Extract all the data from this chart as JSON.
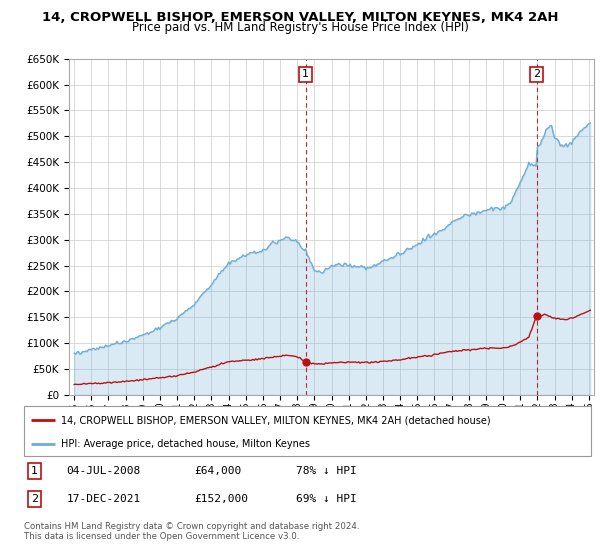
{
  "title": "14, CROPWELL BISHOP, EMERSON VALLEY, MILTON KEYNES, MK4 2AH",
  "subtitle": "Price paid vs. HM Land Registry's House Price Index (HPI)",
  "ylim": [
    0,
    650000
  ],
  "yticks": [
    0,
    50000,
    100000,
    150000,
    200000,
    250000,
    300000,
    350000,
    400000,
    450000,
    500000,
    550000,
    600000,
    650000
  ],
  "ytick_labels": [
    "£0",
    "£50K",
    "£100K",
    "£150K",
    "£200K",
    "£250K",
    "£300K",
    "£350K",
    "£400K",
    "£450K",
    "£500K",
    "£550K",
    "£600K",
    "£650K"
  ],
  "xlim_start": 1994.7,
  "xlim_end": 2025.3,
  "hpi_color": "#6baed6",
  "hpi_fill_color": "#ddeeff",
  "price_color": "#bb1111",
  "marker1_date": 2008.5,
  "marker1_price": 64000,
  "marker1_label": "04-JUL-2008",
  "marker1_value": "£64,000",
  "marker1_pct": "78% ↓ HPI",
  "marker2_date": 2021.96,
  "marker2_price": 152000,
  "marker2_label": "17-DEC-2021",
  "marker2_value": "£152,000",
  "marker2_pct": "69% ↓ HPI",
  "legend_line1": "14, CROPWELL BISHOP, EMERSON VALLEY, MILTON KEYNES, MK4 2AH (detached house)",
  "legend_line2": "HPI: Average price, detached house, Milton Keynes",
  "footer": "Contains HM Land Registry data © Crown copyright and database right 2024.\nThis data is licensed under the Open Government Licence v3.0.",
  "background_color": "#f0f4f8"
}
